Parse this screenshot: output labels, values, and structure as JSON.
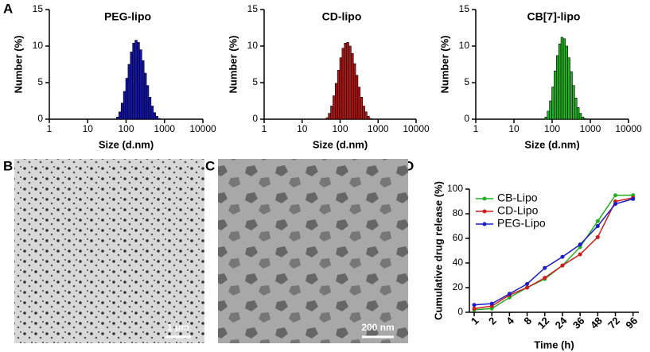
{
  "panel_labels": [
    "A",
    "B",
    "C",
    "D"
  ],
  "images": [
    {
      "scale_bar": "1 μm"
    },
    {
      "scale_bar": "200 nm"
    }
  ],
  "chart_data": [
    {
      "type": "histogram",
      "title": "PEG-lipo",
      "x_label": "Size (d.nm)",
      "y_label": "Number (%)",
      "log_x": true,
      "color": "#1414a8",
      "bins": [
        56.2,
        64.6,
        74.1,
        85.1,
        97.7,
        112.2,
        128.8,
        147.9,
        169.8,
        195.0,
        223.9,
        257.0,
        295.1,
        338.8,
        389.0,
        446.7,
        512.9,
        588.8,
        676.1,
        776.2
      ],
      "values": [
        0.3,
        1.0,
        2.2,
        3.8,
        5.6,
        7.5,
        9.2,
        10.4,
        10.8,
        10.5,
        9.5,
        8.0,
        6.3,
        4.6,
        3.0,
        1.8,
        0.9,
        0.4,
        0.1
      ],
      "xlim": [
        1,
        10000
      ],
      "xticks": [
        1,
        10,
        100,
        1000,
        10000
      ],
      "ylim": [
        0,
        15
      ],
      "yticks": [
        0,
        5,
        10,
        15
      ]
    },
    {
      "type": "histogram",
      "title": "CD-lipo",
      "x_label": "Size (d.nm)",
      "y_label": "Number (%)",
      "log_x": true,
      "color": "#b01414",
      "bins": [
        42.7,
        49.0,
        56.2,
        64.6,
        74.1,
        85.1,
        97.7,
        112.2,
        128.8,
        147.9,
        169.8,
        195.0,
        223.9,
        257.0,
        295.1,
        338.8,
        389.0,
        446.7,
        512.9,
        588.8,
        676.1
      ],
      "values": [
        0.2,
        0.8,
        1.8,
        3.2,
        4.9,
        6.7,
        8.4,
        9.7,
        10.4,
        10.5,
        10.0,
        9.0,
        7.6,
        6.0,
        4.4,
        3.0,
        1.8,
        1.0,
        0.4,
        0.1
      ],
      "xlim": [
        1,
        10000
      ],
      "xticks": [
        1,
        10,
        100,
        1000,
        10000
      ],
      "ylim": [
        0,
        15
      ],
      "yticks": [
        0,
        5,
        10,
        15
      ]
    },
    {
      "type": "histogram",
      "title": "CB[7]-lipo",
      "x_label": "Size (d.nm)",
      "y_label": "Number (%)",
      "log_x": true,
      "color": "#22b022",
      "bins": [
        64.6,
        74.1,
        85.1,
        97.7,
        112.2,
        128.8,
        147.9,
        169.8,
        195.0,
        223.9,
        257.0,
        295.1,
        338.8,
        389.0,
        446.7,
        512.9,
        588.8,
        676.1,
        776.2
      ],
      "values": [
        0.3,
        1.1,
        2.5,
        4.4,
        6.6,
        8.7,
        10.3,
        11.2,
        11.0,
        10.0,
        8.4,
        6.5,
        4.6,
        2.9,
        1.6,
        0.8,
        0.3,
        0.1
      ],
      "xlim": [
        1,
        10000
      ],
      "xticks": [
        1,
        10,
        100,
        1000,
        10000
      ],
      "ylim": [
        0,
        15
      ],
      "yticks": [
        0,
        5,
        10,
        15
      ]
    },
    {
      "type": "line",
      "x_label": "Time (h)",
      "y_label": "Cumulative drug release (%)",
      "legend": "top-left",
      "categories": [
        "1",
        "2",
        "4",
        "8",
        "12",
        "24",
        "36",
        "48",
        "72",
        "96"
      ],
      "series": [
        {
          "name": "CB-Lipo",
          "color": "#22b022",
          "values": [
            2,
            3,
            12,
            20,
            27,
            38,
            53,
            74,
            95,
            95
          ]
        },
        {
          "name": "CD-Lipo",
          "color": "#d01c1c",
          "values": [
            3,
            5,
            14,
            20,
            28,
            38,
            47,
            61,
            90,
            93
          ]
        },
        {
          "name": "PEG-Lipo",
          "color": "#1c1cc8",
          "values": [
            6,
            7,
            15,
            23,
            36,
            45,
            55,
            70,
            88,
            92
          ]
        }
      ],
      "ylim": [
        0,
        100
      ],
      "yticks": [
        0,
        20,
        40,
        60,
        80,
        100
      ]
    }
  ]
}
